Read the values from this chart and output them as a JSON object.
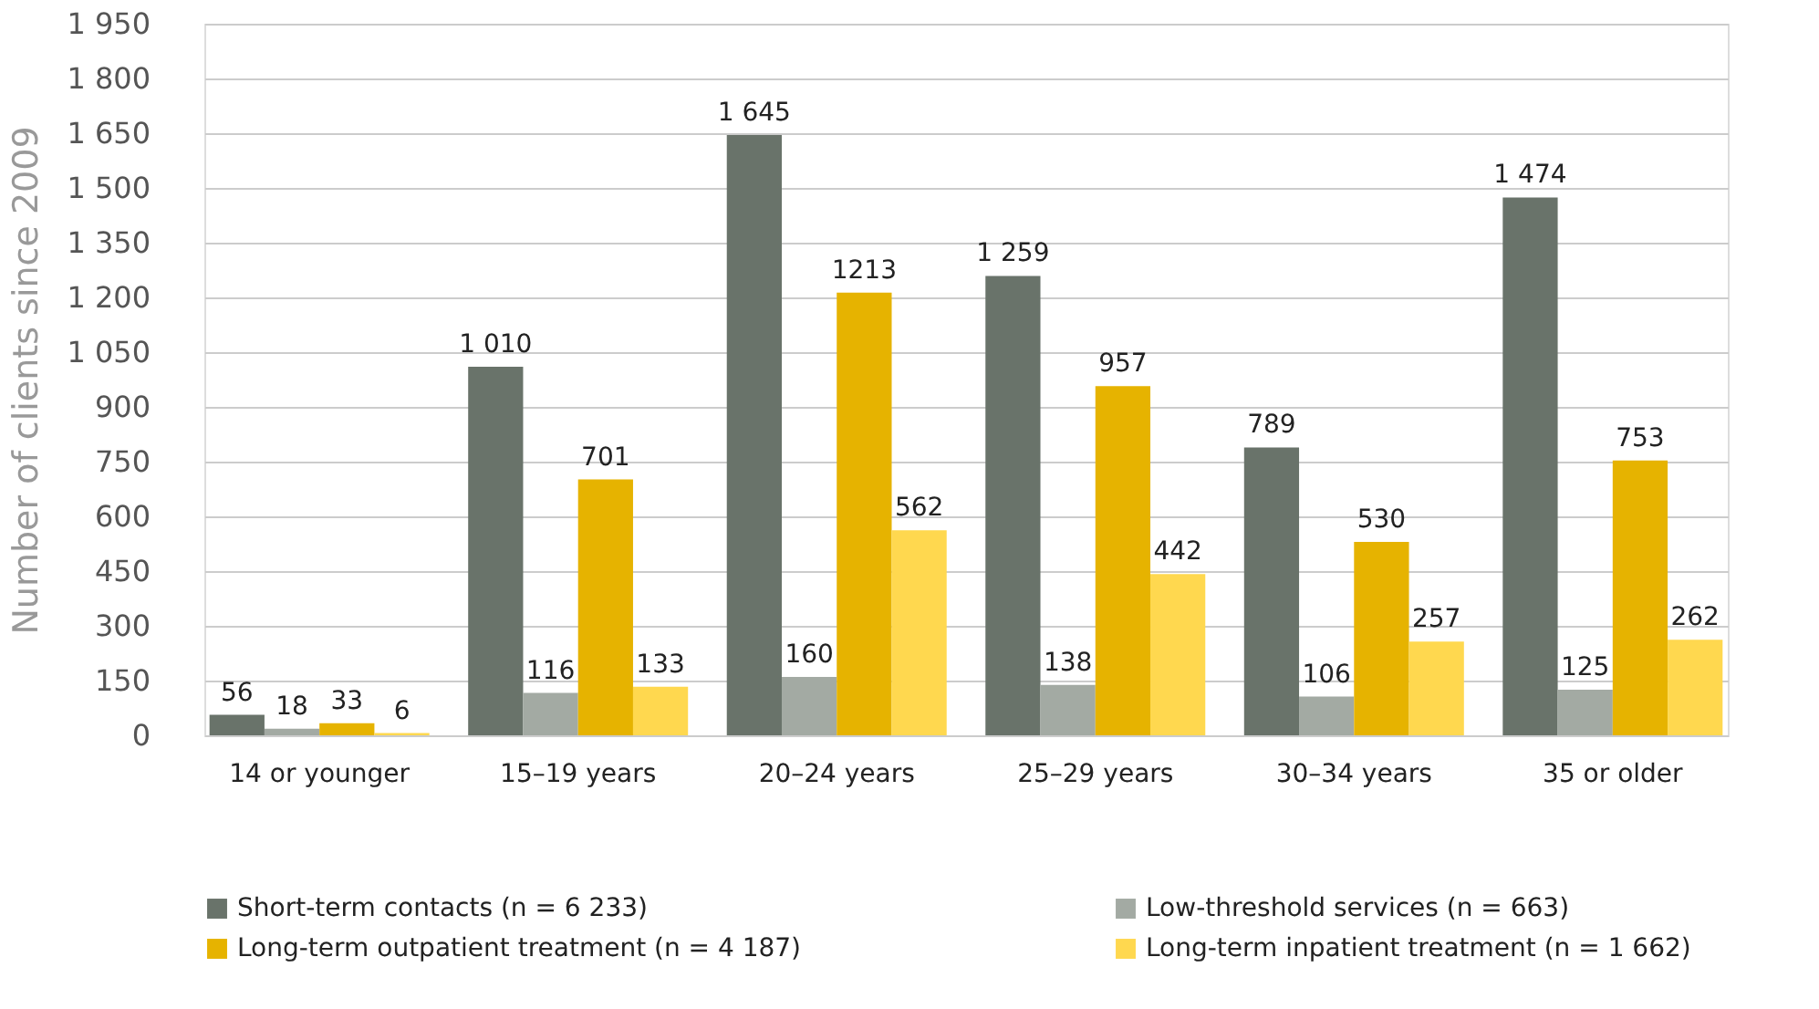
{
  "chart_data": {
    "type": "bar",
    "ylabel": "Number of clients since 2009",
    "categories": [
      "14 or younger",
      "15–19 years",
      "20–24 years",
      "25–29 years",
      "30–34 years",
      "35 or older"
    ],
    "series": [
      {
        "name": "Short-term contacts (n = 6 233)",
        "color": "#69736a",
        "values": [
          56,
          1010,
          1645,
          1259,
          789,
          1474
        ],
        "value_labels": [
          "56",
          "1 010",
          "1 645",
          "1 259",
          "789",
          "1 474"
        ]
      },
      {
        "name": "Low-threshold services (n = 663)",
        "color": "#a3aaa3",
        "values": [
          18,
          116,
          160,
          138,
          106,
          125
        ],
        "value_labels": [
          "18",
          "116",
          "160",
          "138",
          "106",
          "125"
        ]
      },
      {
        "name": "Long-term outpatient treatment (n = 4 187)",
        "color": "#e6b300",
        "values": [
          33,
          701,
          1213,
          957,
          530,
          753
        ],
        "value_labels": [
          "33",
          "701",
          "1213",
          "957",
          "530",
          "753"
        ]
      },
      {
        "name": "Long-term inpatient treatment (n = 1 662)",
        "color": "#ffd84f",
        "values": [
          6,
          133,
          562,
          442,
          257,
          262
        ],
        "value_labels": [
          "6",
          "133",
          "562",
          "442",
          "257",
          "262"
        ]
      }
    ],
    "ylim": [
      0,
      1950
    ],
    "yticks": [
      0,
      150,
      300,
      450,
      600,
      750,
      900,
      {
        "value": 1050,
        "label": "1 050"
      },
      {
        "value": 1200,
        "label": "1 200"
      },
      {
        "value": 1350,
        "label": "1 350"
      },
      {
        "value": 1500,
        "label": "1 500"
      },
      {
        "value": 1650,
        "label": "1 650"
      },
      {
        "value": 1800,
        "label": "1 800"
      },
      {
        "value": 1950,
        "label": "1 950"
      }
    ],
    "grid": "y",
    "legend": "bottom"
  }
}
